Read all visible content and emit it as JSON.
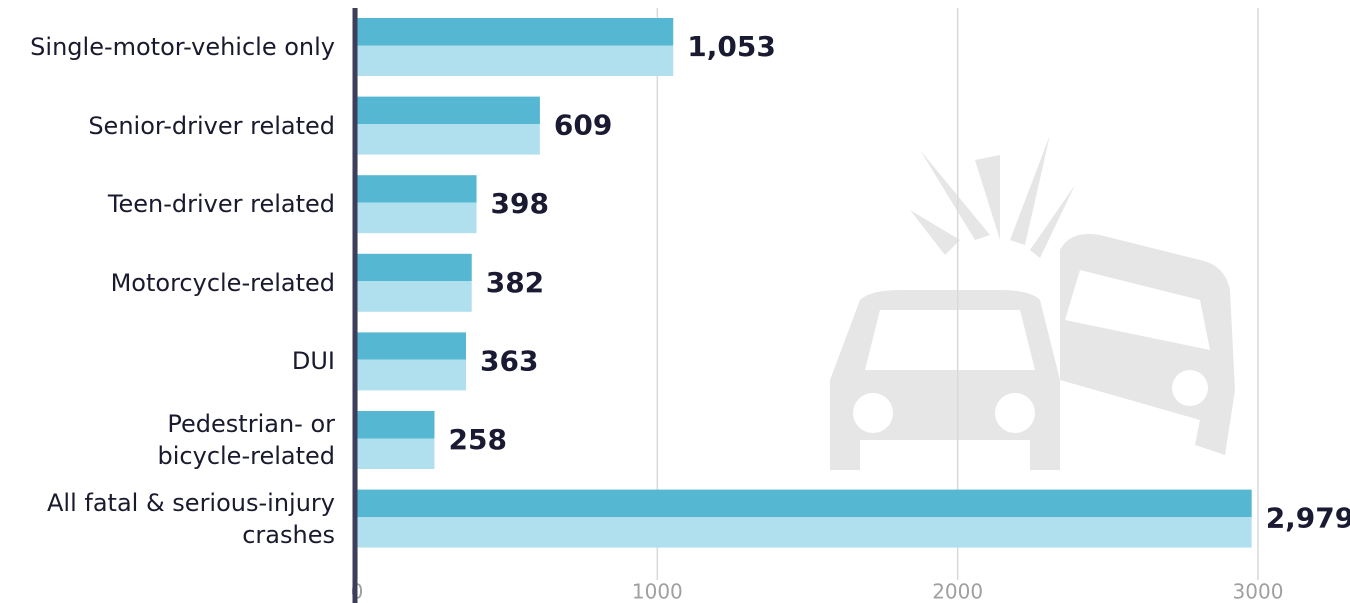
{
  "chart_data": {
    "type": "bar",
    "orientation": "horizontal",
    "categories": [
      "Single-motor-vehicle only",
      "Senior-driver related",
      "Teen-driver related",
      "Motorcycle-related",
      "DUI",
      "Pedestrian- or\nbicycle-related",
      "All fatal & serious-injury\ncrashes"
    ],
    "values": [
      1053,
      609,
      398,
      382,
      363,
      258,
      2979
    ],
    "value_labels": [
      "1,053",
      "609",
      "398",
      "382",
      "363",
      "258",
      "2,979"
    ],
    "color": "#56b7d2",
    "xlim": [
      0,
      3000
    ],
    "xticks": [
      0,
      1000,
      2000,
      3000
    ],
    "grid": true
  }
}
